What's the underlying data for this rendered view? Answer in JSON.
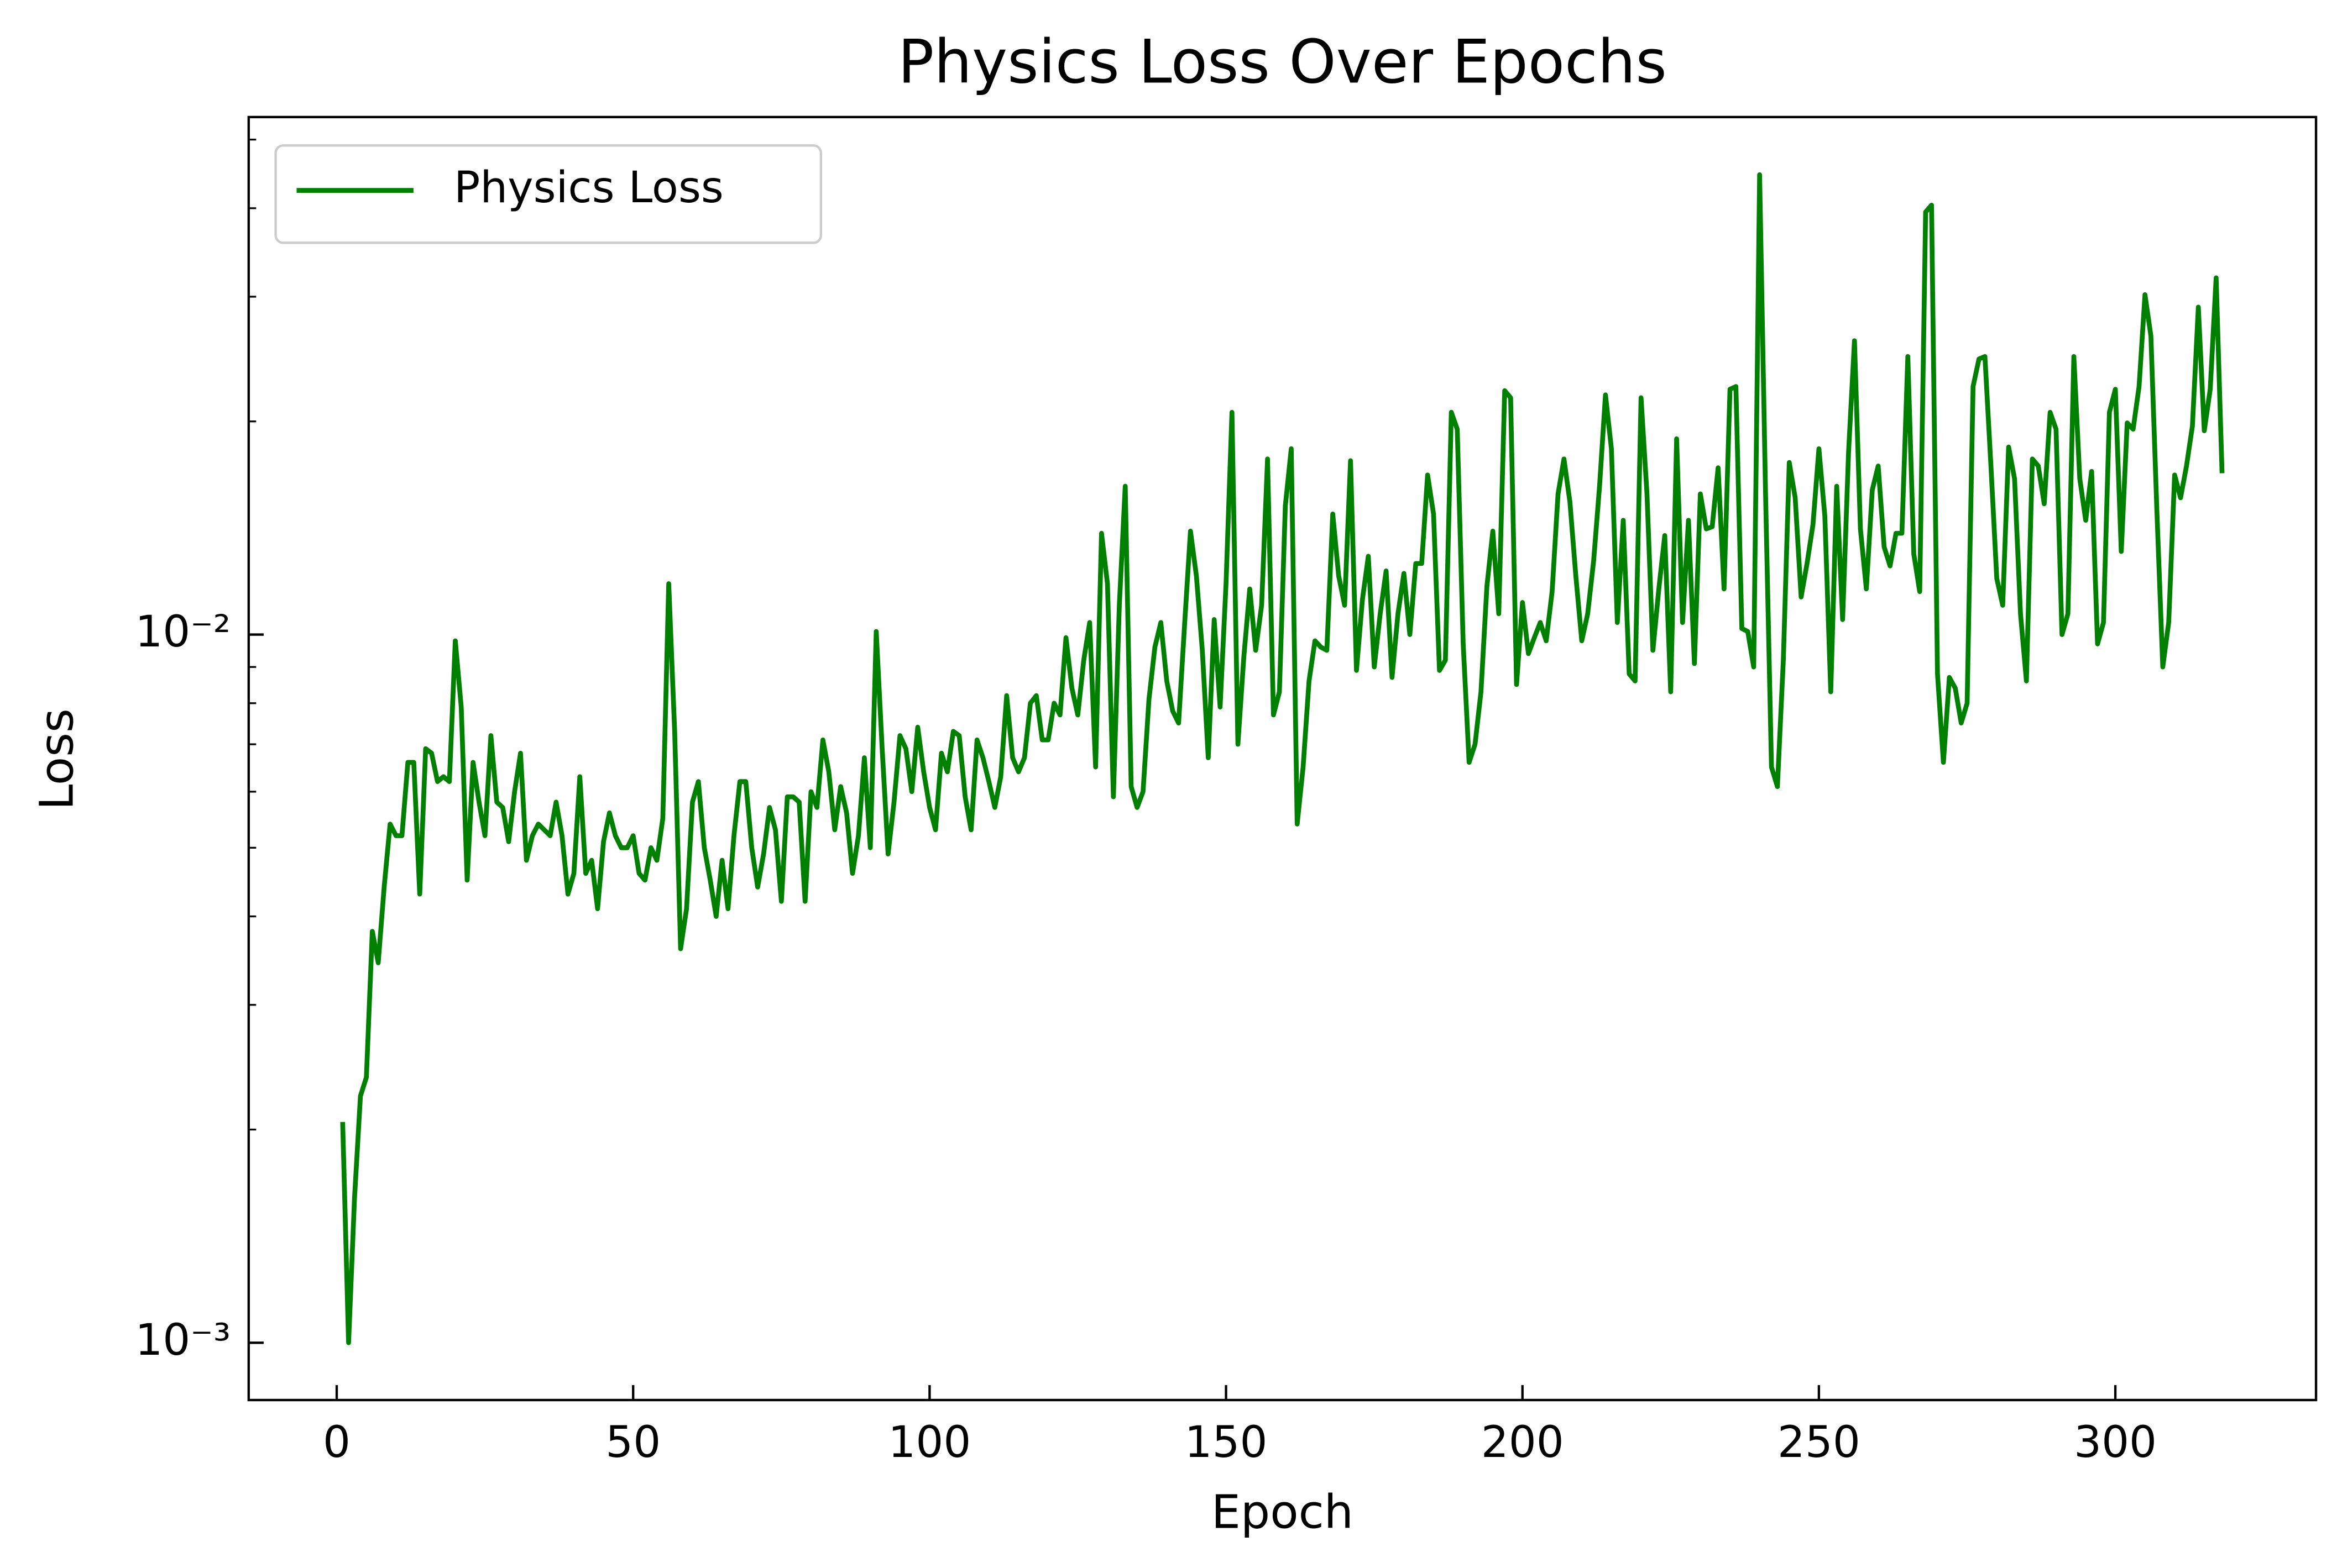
{
  "chart_data": {
    "type": "line",
    "title": "Physics Loss Over Epochs",
    "xlabel": "Epoch",
    "ylabel": "Loss",
    "yscale": "log",
    "legend": "upper left",
    "tick_direction": "in",
    "xlim": [
      -14.85,
      333.85
    ],
    "xticks": [
      0,
      50,
      100,
      150,
      200,
      250,
      300
    ],
    "ylim": [
      0.00083,
      0.0538
    ],
    "yticks": [
      {
        "value": 0.001,
        "label": "10⁻³"
      },
      {
        "value": 0.01,
        "label": "10⁻²"
      }
    ],
    "minor_yticks": [
      0.002,
      0.003,
      0.004,
      0.005,
      0.006,
      0.007,
      0.008,
      0.009,
      0.02,
      0.03,
      0.04,
      0.05
    ],
    "x": [
      1,
      2,
      3,
      4,
      5,
      6,
      7,
      8,
      9,
      10,
      11,
      12,
      13,
      14,
      15,
      16,
      17,
      18,
      19,
      20,
      21,
      22,
      23,
      24,
      25,
      26,
      27,
      28,
      29,
      30,
      31,
      32,
      33,
      34,
      35,
      36,
      37,
      38,
      39,
      40,
      41,
      42,
      43,
      44,
      45,
      46,
      47,
      48,
      49,
      50,
      51,
      52,
      53,
      54,
      55,
      56,
      57,
      58,
      59,
      60,
      61,
      62,
      63,
      64,
      65,
      66,
      67,
      68,
      69,
      70,
      71,
      72,
      73,
      74,
      75,
      76,
      77,
      78,
      79,
      80,
      81,
      82,
      83,
      84,
      85,
      86,
      87,
      88,
      89,
      90,
      91,
      92,
      93,
      94,
      95,
      96,
      97,
      98,
      99,
      100,
      101,
      102,
      103,
      104,
      105,
      106,
      107,
      108,
      109,
      110,
      111,
      112,
      113,
      114,
      115,
      116,
      117,
      118,
      119,
      120,
      121,
      122,
      123,
      124,
      125,
      126,
      127,
      128,
      129,
      130,
      131,
      132,
      133,
      134,
      135,
      136,
      137,
      138,
      139,
      140,
      141,
      142,
      143,
      144,
      145,
      146,
      147,
      148,
      149,
      150,
      151,
      152,
      153,
      154,
      155,
      156,
      157,
      158,
      159,
      160,
      161,
      162,
      163,
      164,
      165,
      166,
      167,
      168,
      169,
      170,
      171,
      172,
      173,
      174,
      175,
      176,
      177,
      178,
      179,
      180,
      181,
      182,
      183,
      184,
      185,
      186,
      187,
      188,
      189,
      190,
      191,
      192,
      193,
      194,
      195,
      196,
      197,
      198,
      199,
      200,
      201,
      202,
      203,
      204,
      205,
      206,
      207,
      208,
      209,
      210,
      211,
      212,
      213,
      214,
      215,
      216,
      217,
      218,
      219,
      220,
      221,
      222,
      223,
      224,
      225,
      226,
      227,
      228,
      229,
      230,
      231,
      232,
      233,
      234,
      235,
      236,
      237,
      238,
      239,
      240,
      241,
      242,
      243,
      244,
      245,
      246,
      247,
      248,
      249,
      250,
      251,
      252,
      253,
      254,
      255,
      256,
      257,
      258,
      259,
      260,
      261,
      262,
      263,
      264,
      265,
      266,
      267,
      268,
      269,
      270,
      271,
      272,
      273,
      274,
      275,
      276,
      277,
      278,
      279,
      280,
      281,
      282,
      283,
      284,
      285,
      286,
      287,
      288,
      289,
      290,
      291,
      292,
      293,
      294,
      295,
      296,
      297,
      298,
      299,
      300,
      301,
      302,
      303,
      304,
      305,
      306,
      307,
      308,
      309,
      310,
      311,
      312,
      313,
      314,
      315,
      316,
      317,
      318
    ],
    "series": [
      {
        "name": "Physics Loss",
        "color": "#008000",
        "values": [
          0.00205,
          0.001,
          0.0016,
          0.00223,
          0.00237,
          0.00381,
          0.00344,
          0.0044,
          0.0054,
          0.0052,
          0.0052,
          0.0066,
          0.0066,
          0.0043,
          0.0069,
          0.0068,
          0.0062,
          0.0063,
          0.0062,
          0.0098,
          0.0079,
          0.0045,
          0.0066,
          0.0058,
          0.0052,
          0.0072,
          0.0058,
          0.0057,
          0.0051,
          0.006,
          0.0068,
          0.0048,
          0.0052,
          0.0054,
          0.0053,
          0.0052,
          0.0058,
          0.0052,
          0.0043,
          0.0046,
          0.0063,
          0.0046,
          0.0048,
          0.0041,
          0.0051,
          0.0056,
          0.0052,
          0.005,
          0.005,
          0.0052,
          0.0046,
          0.0045,
          0.005,
          0.0048,
          0.0055,
          0.0118,
          0.0073,
          0.0036,
          0.0041,
          0.0058,
          0.0062,
          0.005,
          0.0045,
          0.004,
          0.0048,
          0.0041,
          0.0052,
          0.0062,
          0.0062,
          0.005,
          0.0044,
          0.0049,
          0.0057,
          0.0053,
          0.0042,
          0.0059,
          0.0059,
          0.0058,
          0.0042,
          0.006,
          0.0057,
          0.0071,
          0.0064,
          0.0053,
          0.0061,
          0.0056,
          0.0046,
          0.0052,
          0.0067,
          0.005,
          0.0101,
          0.0069,
          0.0049,
          0.0058,
          0.0072,
          0.0069,
          0.006,
          0.0074,
          0.0064,
          0.0057,
          0.0053,
          0.0068,
          0.0064,
          0.0073,
          0.0072,
          0.0059,
          0.0053,
          0.0071,
          0.0067,
          0.0062,
          0.0057,
          0.0063,
          0.0082,
          0.0067,
          0.0064,
          0.0067,
          0.008,
          0.0082,
          0.0071,
          0.0071,
          0.008,
          0.0077,
          0.0099,
          0.0084,
          0.0077,
          0.0092,
          0.0104,
          0.0065,
          0.0139,
          0.0118,
          0.0059,
          0.011,
          0.0162,
          0.0061,
          0.0057,
          0.006,
          0.0081,
          0.0096,
          0.0104,
          0.0086,
          0.0078,
          0.0075,
          0.0103,
          0.014,
          0.0121,
          0.0095,
          0.0067,
          0.0105,
          0.0079,
          0.0118,
          0.0206,
          0.007,
          0.0093,
          0.0116,
          0.0095,
          0.011,
          0.0177,
          0.0077,
          0.0083,
          0.0152,
          0.0183,
          0.0054,
          0.0065,
          0.0086,
          0.0098,
          0.0096,
          0.0095,
          0.0148,
          0.0121,
          0.011,
          0.0176,
          0.0089,
          0.0112,
          0.0129,
          0.009,
          0.0107,
          0.0123,
          0.0087,
          0.0107,
          0.0122,
          0.01,
          0.0126,
          0.0126,
          0.0168,
          0.0148,
          0.0089,
          0.0092,
          0.0206,
          0.0195,
          0.0097,
          0.0066,
          0.007,
          0.0083,
          0.0117,
          0.014,
          0.0107,
          0.0221,
          0.0216,
          0.0085,
          0.0111,
          0.0094,
          0.0099,
          0.0104,
          0.0098,
          0.0115,
          0.0158,
          0.0177,
          0.0154,
          0.0121,
          0.0098,
          0.0107,
          0.0127,
          0.0162,
          0.0218,
          0.0183,
          0.0104,
          0.0145,
          0.0088,
          0.0086,
          0.0216,
          0.0158,
          0.0095,
          0.0116,
          0.0138,
          0.0083,
          0.0189,
          0.0104,
          0.0145,
          0.0091,
          0.0158,
          0.0141,
          0.0142,
          0.0172,
          0.0116,
          0.0222,
          0.0224,
          0.0102,
          0.0101,
          0.009,
          0.0446,
          0.0158,
          0.0065,
          0.0061,
          0.0092,
          0.0175,
          0.0156,
          0.0113,
          0.0126,
          0.0143,
          0.0183,
          0.0147,
          0.0083,
          0.0162,
          0.0105,
          0.0181,
          0.026,
          0.0141,
          0.0116,
          0.016,
          0.0173,
          0.0133,
          0.0125,
          0.0139,
          0.0139,
          0.0247,
          0.013,
          0.0115,
          0.0395,
          0.0404,
          0.0088,
          0.0066,
          0.0087,
          0.0084,
          0.0075,
          0.008,
          0.0224,
          0.0245,
          0.0247,
          0.0174,
          0.012,
          0.011,
          0.0184,
          0.0166,
          0.0107,
          0.0086,
          0.0177,
          0.0173,
          0.0153,
          0.0206,
          0.0195,
          0.01,
          0.0107,
          0.0247,
          0.0166,
          0.0145,
          0.017,
          0.0097,
          0.0104,
          0.0206,
          0.0222,
          0.0131,
          0.0199,
          0.0195,
          0.0224,
          0.0302,
          0.0264,
          0.015,
          0.009,
          0.0104,
          0.0168,
          0.0156,
          0.0173,
          0.0197,
          0.029,
          0.0194,
          0.0222,
          0.0319,
          0.0169
        ]
      }
    ]
  }
}
